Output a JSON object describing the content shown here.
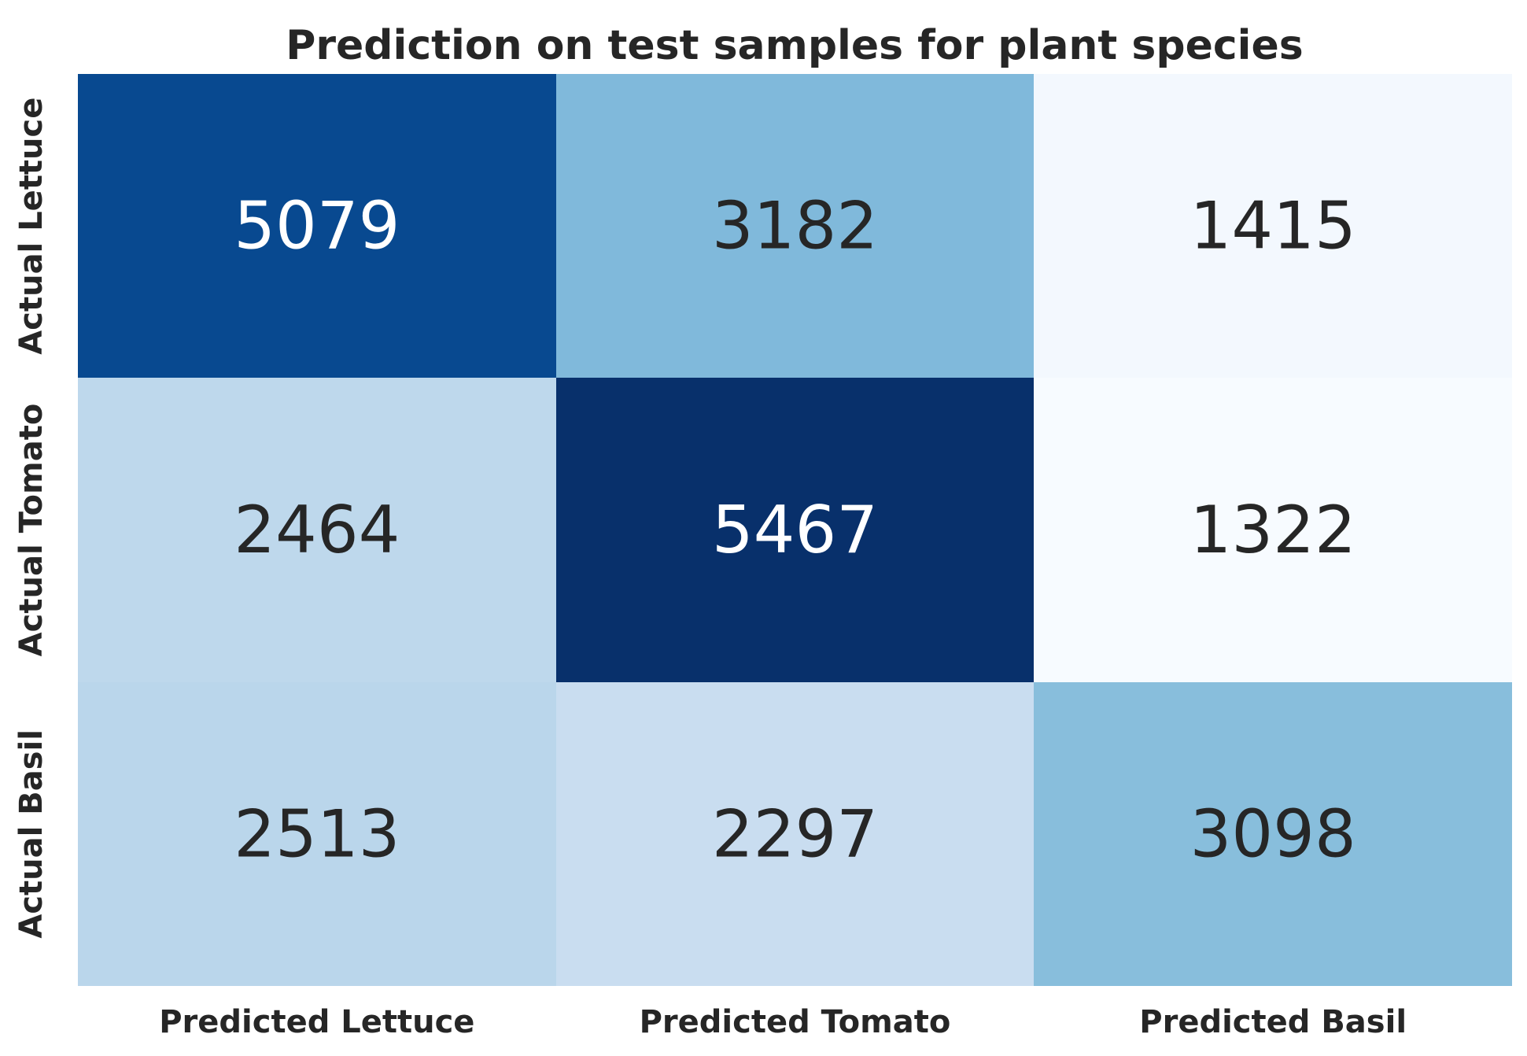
{
  "chart_data": {
    "type": "heatmap",
    "title": "Prediction on test samples for plant species",
    "x_tick_labels": [
      "Predicted Lettuce",
      "Predicted Tomato",
      "Predicted Basil"
    ],
    "y_tick_labels": [
      "Actual Lettuce",
      "Actual Tomato",
      "Actual Basil"
    ],
    "values": [
      [
        5079,
        3182,
        1415
      ],
      [
        2464,
        5467,
        1322
      ],
      [
        2513,
        2297,
        3098
      ]
    ],
    "colormap": "Blues",
    "colorbar": false,
    "annot_color_dark": "#262626",
    "annot_color_light": "#ffffff"
  }
}
